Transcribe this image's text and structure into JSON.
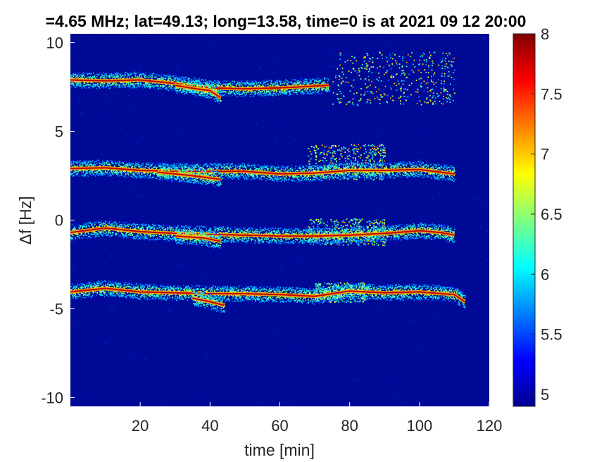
{
  "chart_data": {
    "type": "heatmap",
    "title": "=4.65 MHz;  lat=49.13; long=13.58, time=0 is at 2021 09 12 20:00",
    "xlabel": "time [min]",
    "ylabel": "Δf [Hz]",
    "xlim": [
      0,
      120
    ],
    "ylim": [
      -10.5,
      10.5
    ],
    "x_ticks": [
      20,
      40,
      60,
      80,
      100,
      120
    ],
    "y_ticks": [
      10,
      5,
      0,
      -5,
      -10
    ],
    "colorbar": {
      "colormap": "jet",
      "range": [
        4.9,
        8
      ],
      "ticks": [
        5,
        5.5,
        6,
        6.5,
        7,
        7.5,
        8
      ],
      "tick_labels": [
        "5",
        "5.5",
        "6",
        "6.5",
        "7",
        "7.5",
        "8"
      ]
    },
    "traces": [
      {
        "points": [
          [
            0,
            7.9
          ],
          [
            10,
            7.85
          ],
          [
            20,
            7.9
          ],
          [
            30,
            7.7
          ],
          [
            40,
            7.45
          ],
          [
            50,
            7.4
          ],
          [
            60,
            7.45
          ],
          [
            70,
            7.55
          ],
          [
            74,
            7.6
          ]
        ]
      },
      {
        "points": [
          [
            30,
            7.6
          ],
          [
            36,
            7.4
          ],
          [
            40,
            7.3
          ],
          [
            43,
            6.9
          ]
        ]
      },
      {
        "points": [
          [
            0,
            2.9
          ],
          [
            10,
            2.95
          ],
          [
            20,
            2.8
          ],
          [
            30,
            2.75
          ],
          [
            40,
            2.75
          ],
          [
            50,
            2.75
          ],
          [
            60,
            2.6
          ],
          [
            70,
            2.65
          ],
          [
            80,
            2.8
          ],
          [
            90,
            2.8
          ],
          [
            100,
            2.85
          ],
          [
            110,
            2.6
          ]
        ]
      },
      {
        "points": [
          [
            25,
            2.7
          ],
          [
            35,
            2.5
          ],
          [
            43,
            2.3
          ]
        ]
      },
      {
        "points": [
          [
            0,
            -0.7
          ],
          [
            10,
            -0.45
          ],
          [
            20,
            -0.65
          ],
          [
            30,
            -0.75
          ],
          [
            40,
            -0.8
          ],
          [
            50,
            -0.85
          ],
          [
            60,
            -0.9
          ],
          [
            70,
            -0.9
          ],
          [
            80,
            -0.85
          ],
          [
            90,
            -0.75
          ],
          [
            100,
            -0.6
          ],
          [
            106,
            -0.7
          ],
          [
            110,
            -0.85
          ]
        ]
      },
      {
        "points": [
          [
            30,
            -0.9
          ],
          [
            38,
            -1.0
          ],
          [
            43,
            -1.2
          ]
        ]
      },
      {
        "points": [
          [
            0,
            -4.05
          ],
          [
            10,
            -3.85
          ],
          [
            20,
            -4.05
          ],
          [
            30,
            -4.1
          ],
          [
            40,
            -4.15
          ],
          [
            50,
            -4.15
          ],
          [
            60,
            -4.2
          ],
          [
            70,
            -4.3
          ],
          [
            80,
            -4.0
          ],
          [
            90,
            -4.1
          ],
          [
            100,
            -4.05
          ],
          [
            110,
            -4.2
          ],
          [
            113,
            -4.6
          ]
        ]
      },
      {
        "points": [
          [
            35,
            -4.4
          ],
          [
            40,
            -4.6
          ],
          [
            44,
            -4.8
          ]
        ]
      }
    ],
    "scatter_clusters": [
      {
        "x": [
          75,
          110
        ],
        "y": [
          6.5,
          9.5
        ],
        "level": 6.5
      },
      {
        "x": [
          68,
          90
        ],
        "y": [
          2.3,
          4.3
        ],
        "level": 6.6
      },
      {
        "x": [
          68,
          90
        ],
        "y": [
          -1.4,
          0.1
        ],
        "level": 6.4
      },
      {
        "x": [
          70,
          85
        ],
        "y": [
          -4.6,
          -3.5
        ],
        "level": 6.2
      }
    ]
  }
}
